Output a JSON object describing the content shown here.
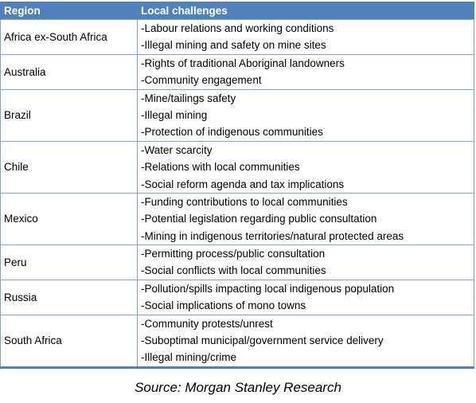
{
  "header": {
    "region": "Region",
    "challenges": "Local challenges"
  },
  "rows": [
    {
      "region": "Africa ex-South Africa",
      "challenges": [
        "-Labour relations and working conditions",
        "-Illegal mining and safety on mine sites"
      ]
    },
    {
      "region": "Australia",
      "challenges": [
        "-Rights of traditional Aboriginal landowners",
        "-Community engagement"
      ]
    },
    {
      "region": "Brazil",
      "challenges": [
        "-Mine/tailings safety",
        "-Illegal mining",
        "-Protection of indigenous communities"
      ]
    },
    {
      "region": "Chile",
      "challenges": [
        "-Water scarcity",
        "-Relations with local communities",
        "-Social reform agenda and tax implications"
      ]
    },
    {
      "region": "Mexico",
      "challenges": [
        "-Funding contributions to local communities",
        "-Potential legislation regarding public consultation",
        "-Mining in indigenous territories/natural protected areas"
      ]
    },
    {
      "region": "Peru",
      "challenges": [
        "-Permitting process/public consultation",
        "-Social conflicts with local communities"
      ]
    },
    {
      "region": "Russia",
      "challenges": [
        "-Pollution/spills impacting local indigenous population",
        "-Social implications of mono towns"
      ]
    },
    {
      "region": "South Africa",
      "challenges": [
        "-Community protests/unrest",
        "-Suboptimal municipal/government service delivery",
        "-Illegal mining/crime"
      ]
    }
  ],
  "source": "Source: Morgan Stanley Research"
}
